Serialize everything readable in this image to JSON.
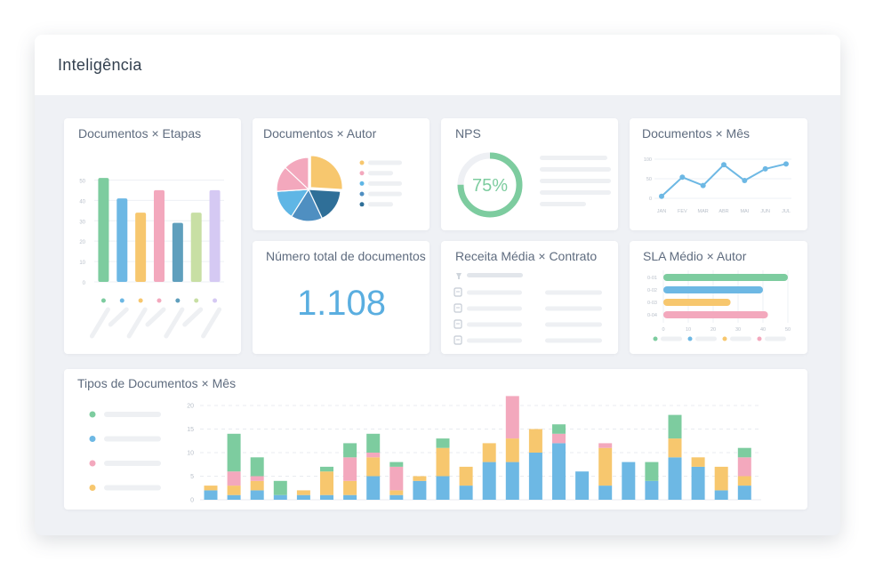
{
  "header": {
    "title": "Inteligência"
  },
  "colors": {
    "green": "#7dcc9f",
    "blue": "#6db8e4",
    "yellow": "#f7c76e",
    "pink": "#f3a8bd",
    "teal": "#5f9fbd",
    "lime": "#c8dfa4",
    "lavender": "#d5c9f3",
    "navy": "#2f6f98",
    "text": "#5f6c7f"
  },
  "cards": {
    "etapas": {
      "title": "Documentos × Etapas",
      "chart_data": {
        "type": "bar",
        "categories": [
          "",
          "",
          "",
          "",
          "",
          "",
          ""
        ],
        "values": [
          51,
          41,
          34,
          45,
          29,
          34,
          45
        ],
        "yticks": [
          "0",
          "10",
          "20",
          "30",
          "40",
          "50"
        ],
        "ylim": [
          0,
          55
        ],
        "colors": [
          "#7dcc9f",
          "#6db8e4",
          "#f7c76e",
          "#f3a8bd",
          "#5f9fbd",
          "#c8dfa4",
          "#d5c9f3"
        ]
      }
    },
    "autor": {
      "title": "Documentos × Autor",
      "chart_data": {
        "type": "pie",
        "values": [
          26,
          17,
          16,
          15,
          13,
          13
        ],
        "colors": [
          "#f7c76e",
          "#2f6f98",
          "#4f8fc1",
          "#5fb6e5",
          "#f3a8bd",
          "#f3a8bd"
        ],
        "legend_colors": [
          "#f7c76e",
          "#f3a8bd",
          "#5fb6e5",
          "#4f8fc1",
          "#2f6f98"
        ]
      }
    },
    "nps": {
      "title": "NPS",
      "value": "75%",
      "percent": 75
    },
    "mes": {
      "title": "Documentos × Mês",
      "chart_data": {
        "type": "line",
        "x": [
          "JAN",
          "FEV",
          "MAR",
          "ABR",
          "MAI",
          "JUN",
          "JUL"
        ],
        "yticks": [
          "0",
          "50",
          "100"
        ],
        "ylim": [
          0,
          120
        ],
        "values": [
          22,
          68,
          48,
          98,
          60,
          88,
          100
        ]
      }
    },
    "total": {
      "title": "Número total de documentos",
      "value": "1.108"
    },
    "receita": {
      "title": "Receita Média × Contrato"
    },
    "sla": {
      "title": "SLA Médio × Autor",
      "chart_data": {
        "type": "bar",
        "orientation": "horizontal",
        "categories": [
          "0-01",
          "0-02",
          "0-03",
          "0-04"
        ],
        "values": [
          50,
          40,
          27,
          42
        ],
        "colors": [
          "#7dcc9f",
          "#6db8e4",
          "#f7c76e",
          "#f3a8bd"
        ],
        "xticks": [
          "0",
          "10",
          "20",
          "30",
          "40",
          "50"
        ],
        "xlim": [
          0,
          50
        ]
      }
    },
    "tipos": {
      "title": "Tipos de Documentos × Mês",
      "legend_colors": [
        "#7dcc9f",
        "#6db8e4",
        "#f3a8bd",
        "#f7c76e"
      ],
      "chart_data": {
        "type": "bar",
        "stacked": true,
        "yticks": [
          "0",
          "5",
          "10",
          "15",
          "20"
        ],
        "ylim": [
          0,
          22
        ],
        "series": [
          {
            "color": "#6db8e4",
            "values": [
              2,
              1,
              2,
              1,
              1,
              1,
              1,
              5,
              1,
              4,
              5,
              3,
              8,
              8,
              10,
              12,
              6,
              3,
              8,
              4,
              9,
              7,
              2,
              3
            ]
          },
          {
            "color": "#f7c76e",
            "values": [
              1,
              2,
              2,
              0,
              1,
              5,
              3,
              4,
              1,
              1,
              6,
              4,
              4,
              5,
              5,
              0,
              0,
              8,
              0,
              0,
              4,
              2,
              5,
              2
            ]
          },
          {
            "color": "#f3a8bd",
            "values": [
              0,
              3,
              1,
              0,
              0,
              0,
              5,
              1,
              5,
              0,
              0,
              0,
              0,
              9,
              0,
              2,
              0,
              1,
              0,
              0,
              0,
              0,
              0,
              4
            ]
          },
          {
            "color": "#7dcc9f",
            "values": [
              0,
              8,
              4,
              3,
              0,
              1,
              3,
              4,
              1,
              0,
              2,
              0,
              0,
              0,
              0,
              2,
              0,
              0,
              0,
              4,
              5,
              0,
              0,
              2
            ]
          }
        ]
      }
    }
  }
}
